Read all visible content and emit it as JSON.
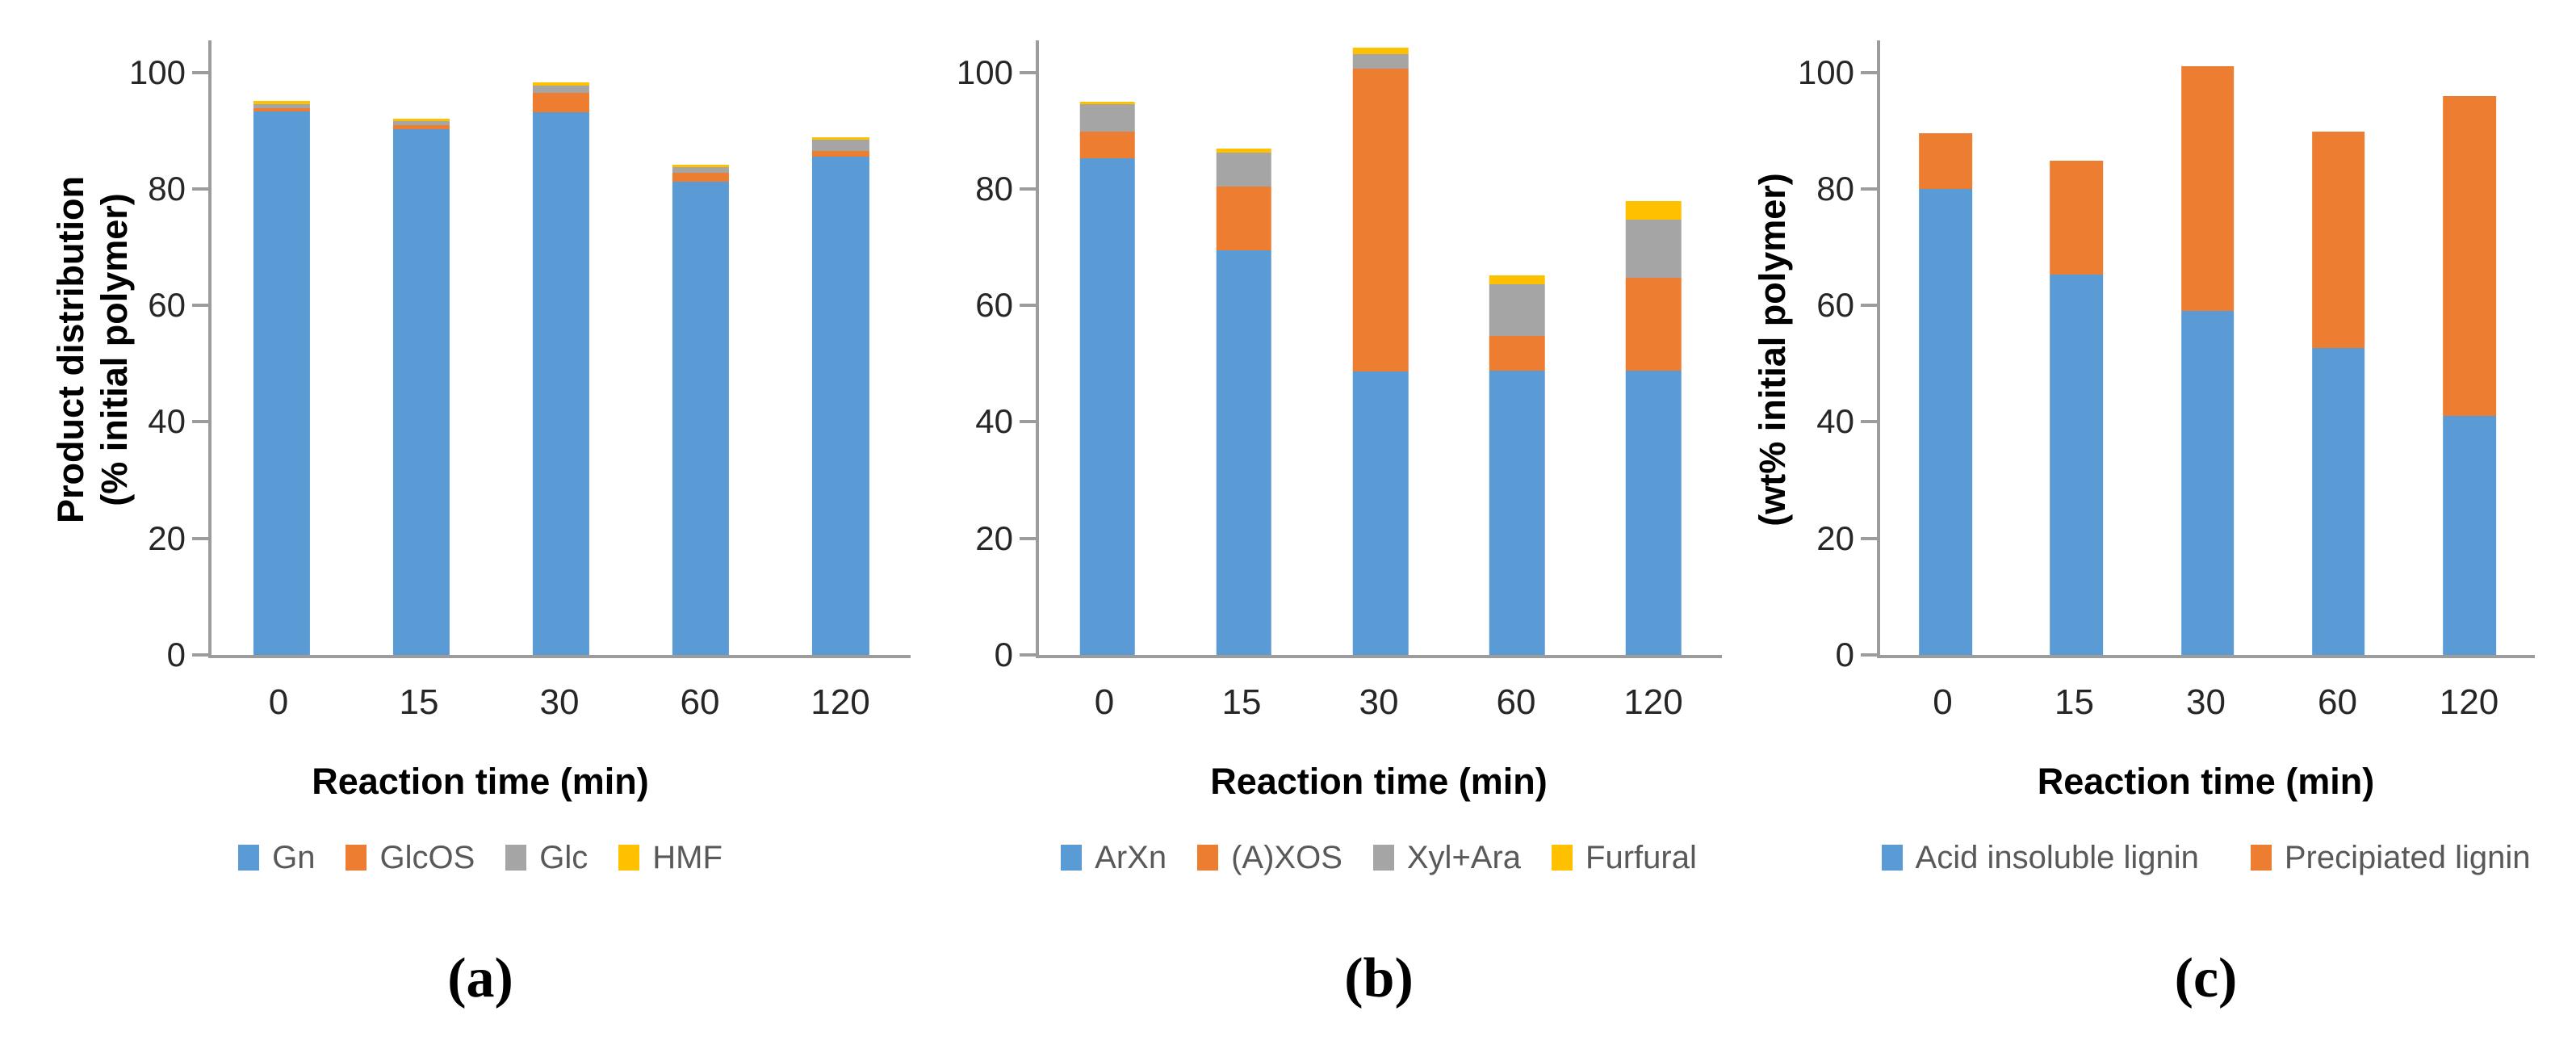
{
  "figure": {
    "panels": [
      {
        "id": "a",
        "sublabel": "(a)",
        "y_axis_title_lines": [
          "Product distribution",
          "(% initial polymer)"
        ],
        "x_axis_title": "Reaction time (min)"
      },
      {
        "id": "b",
        "sublabel": "(b)",
        "y_axis_title_lines": [],
        "x_axis_title": "Reaction time (min)"
      },
      {
        "id": "c",
        "sublabel": "(c)",
        "y_axis_title_lines": [
          "(wt% initial polymer)"
        ],
        "x_axis_title": "Reaction time (min)"
      }
    ],
    "colors": {
      "blue": "#5B9BD5",
      "orange": "#ED7D31",
      "gray": "#A5A5A5",
      "yellow": "#FFC000",
      "axis": "#9C9C9C",
      "legend_text": "#595959"
    }
  },
  "chart_data": [
    {
      "type": "bar",
      "stacked": true,
      "title": "",
      "xlabel": "Reaction time (min)",
      "ylabel": "Product distribution (% initial polymer)",
      "categories": [
        "0",
        "15",
        "30",
        "60",
        "120"
      ],
      "series": [
        {
          "name": "Gn",
          "color": "#5B9BD5",
          "values": [
            93.3,
            90.3,
            93.2,
            81.2,
            85.6
          ]
        },
        {
          "name": "GlcOS",
          "color": "#ED7D31",
          "values": [
            0.5,
            0.6,
            3.3,
            1.5,
            0.9
          ]
        },
        {
          "name": "Glc",
          "color": "#A5A5A5",
          "values": [
            0.7,
            0.7,
            1.2,
            1.1,
            2.0
          ]
        },
        {
          "name": "HMF",
          "color": "#FFC000",
          "values": [
            0.6,
            0.5,
            0.6,
            0.4,
            0.4
          ]
        }
      ],
      "ylim": [
        0,
        105.5
      ],
      "yticks": [
        0,
        20,
        40,
        60,
        80,
        100
      ],
      "grid": false,
      "legend_position": "bottom"
    },
    {
      "type": "bar",
      "stacked": true,
      "title": "",
      "xlabel": "Reaction time (min)",
      "ylabel": "",
      "categories": [
        "0",
        "15",
        "30",
        "60",
        "120"
      ],
      "series": [
        {
          "name": "ArXn",
          "color": "#5B9BD5",
          "values": [
            85.3,
            69.4,
            48.6,
            48.8,
            48.8
          ]
        },
        {
          "name": "(A)XOS",
          "color": "#ED7D31",
          "values": [
            4.6,
            11.0,
            52.0,
            6.0,
            15.9
          ]
        },
        {
          "name": "Xyl+Ara",
          "color": "#A5A5A5",
          "values": [
            4.7,
            5.9,
            2.5,
            8.8,
            10.0
          ]
        },
        {
          "name": "Furfural",
          "color": "#FFC000",
          "values": [
            0.4,
            0.6,
            1.1,
            1.6,
            3.2
          ]
        }
      ],
      "ylim": [
        0,
        105.5
      ],
      "yticks": [
        0,
        20,
        40,
        60,
        80,
        100
      ],
      "grid": false,
      "legend_position": "bottom"
    },
    {
      "type": "bar",
      "stacked": true,
      "title": "",
      "xlabel": "Reaction time (min)",
      "ylabel": "(wt% initial polymer)",
      "categories": [
        "0",
        "15",
        "30",
        "60",
        "120"
      ],
      "series": [
        {
          "name": "Acid insoluble lignin",
          "color": "#5B9BD5",
          "values": [
            80.0,
            65.3,
            59.0,
            52.7,
            41.0
          ]
        },
        {
          "name": "Precipiated lignin",
          "color": "#ED7D31",
          "values": [
            9.5,
            19.5,
            42.0,
            37.2,
            55.0
          ]
        }
      ],
      "ylim": [
        0,
        105.5
      ],
      "yticks": [
        0,
        20,
        40,
        60,
        80,
        100
      ],
      "grid": false,
      "legend_position": "bottom"
    }
  ]
}
